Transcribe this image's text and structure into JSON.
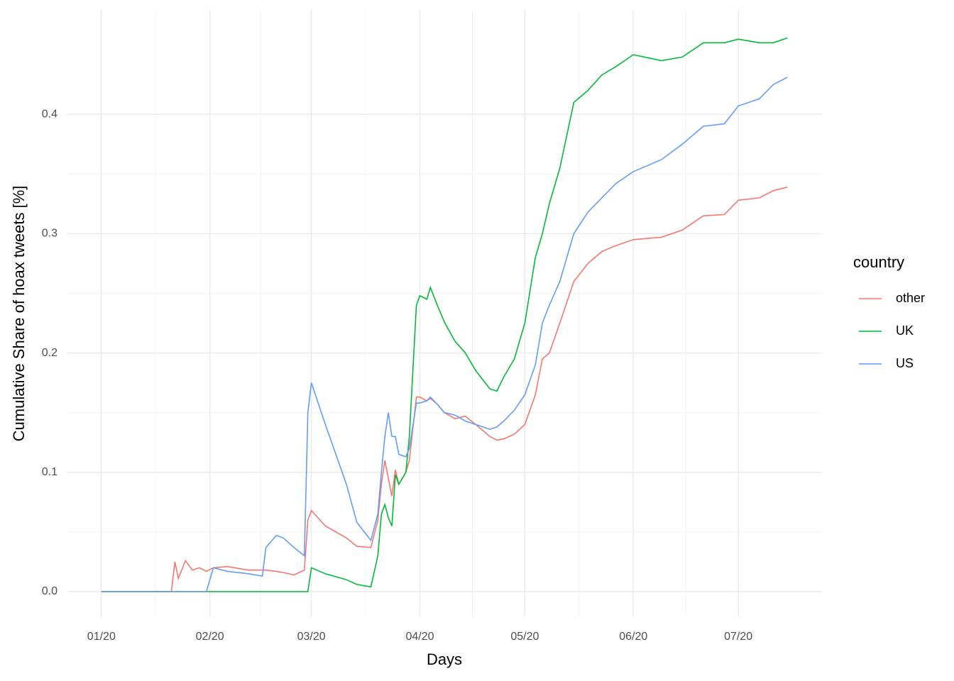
{
  "chart_data": {
    "type": "line",
    "xlabel": "Days",
    "ylabel": "Cumulative Share of hoax tweets [%]",
    "legend_title": "country",
    "legend_position": "right",
    "grid": true,
    "x": [
      0,
      20,
      21,
      22,
      24,
      26,
      28,
      30,
      32,
      36,
      42,
      46,
      47,
      50,
      52,
      55,
      58,
      59,
      60,
      64,
      70,
      73,
      77,
      79,
      80,
      81,
      82,
      83,
      84,
      85,
      87,
      88,
      90,
      91,
      93,
      94,
      96,
      98,
      101,
      104,
      107,
      111,
      113,
      115,
      118,
      121,
      124,
      126,
      128,
      131,
      135,
      139,
      143,
      147,
      152,
      160,
      166,
      172,
      178,
      182,
      188,
      192,
      196
    ],
    "xlim": [
      -9.7,
      205.9
    ],
    "xticks": [
      {
        "value": 0,
        "label": "01/20"
      },
      {
        "value": 31,
        "label": "02/20"
      },
      {
        "value": 60,
        "label": "03/20"
      },
      {
        "value": 91,
        "label": "04/20"
      },
      {
        "value": 121,
        "label": "05/20"
      },
      {
        "value": 152,
        "label": "06/20"
      },
      {
        "value": 182,
        "label": "07/20"
      }
    ],
    "ylim": [
      -0.0214,
      0.4875
    ],
    "yticks": [
      {
        "value": 0,
        "label": "0.0"
      },
      0.1,
      0.2,
      0.3,
      0.4
    ],
    "series": [
      {
        "name": "other",
        "color": "#F8766D",
        "values": [
          0,
          0,
          0.025,
          0.011,
          0.026,
          0.018,
          0.02,
          0.017,
          0.02,
          0.021,
          0.018,
          0.018,
          0.018,
          0.017,
          0.016,
          0.014,
          0.018,
          0.06,
          0.068,
          0.055,
          0.045,
          0.038,
          0.037,
          0.06,
          0.09,
          0.11,
          0.095,
          0.08,
          0.102,
          0.09,
          0.1,
          0.11,
          0.163,
          0.163,
          0.16,
          0.162,
          0.157,
          0.15,
          0.145,
          0.147,
          0.14,
          0.13,
          0.127,
          0.128,
          0.132,
          0.14,
          0.165,
          0.195,
          0.2,
          0.225,
          0.26,
          0.275,
          0.285,
          0.29,
          0.295,
          0.297,
          0.303,
          0.315,
          0.316,
          0.328,
          0.33,
          0.336,
          0.339
        ]
      },
      {
        "name": "UK",
        "color": "#00BA38",
        "values": [
          0,
          0,
          0,
          0,
          0,
          0,
          0,
          0,
          0,
          0,
          0,
          0,
          0,
          0,
          0,
          0,
          0,
          0,
          0.02,
          0.015,
          0.01,
          0.006,
          0.004,
          0.03,
          0.065,
          0.073,
          0.062,
          0.055,
          0.098,
          0.09,
          0.1,
          0.13,
          0.24,
          0.248,
          0.245,
          0.255,
          0.24,
          0.226,
          0.21,
          0.2,
          0.185,
          0.17,
          0.168,
          0.18,
          0.195,
          0.225,
          0.28,
          0.3,
          0.325,
          0.355,
          0.41,
          0.42,
          0.433,
          0.44,
          0.45,
          0.445,
          0.448,
          0.46,
          0.46,
          0.463,
          0.46,
          0.46,
          0.464
        ]
      },
      {
        "name": "US",
        "color": "#619CFF",
        "values": [
          0,
          0,
          0,
          0,
          0,
          0,
          0,
          0,
          0.02,
          0.017,
          0.015,
          0.013,
          0.037,
          0.047,
          0.045,
          0.037,
          0.03,
          0.15,
          0.175,
          0.14,
          0.09,
          0.058,
          0.043,
          0.065,
          0.1,
          0.13,
          0.15,
          0.13,
          0.13,
          0.115,
          0.113,
          0.12,
          0.158,
          0.158,
          0.16,
          0.163,
          0.157,
          0.15,
          0.148,
          0.143,
          0.14,
          0.136,
          0.138,
          0.143,
          0.152,
          0.165,
          0.19,
          0.225,
          0.24,
          0.26,
          0.3,
          0.318,
          0.33,
          0.342,
          0.352,
          0.362,
          0.375,
          0.39,
          0.392,
          0.407,
          0.413,
          0.425,
          0.431
        ]
      }
    ]
  }
}
